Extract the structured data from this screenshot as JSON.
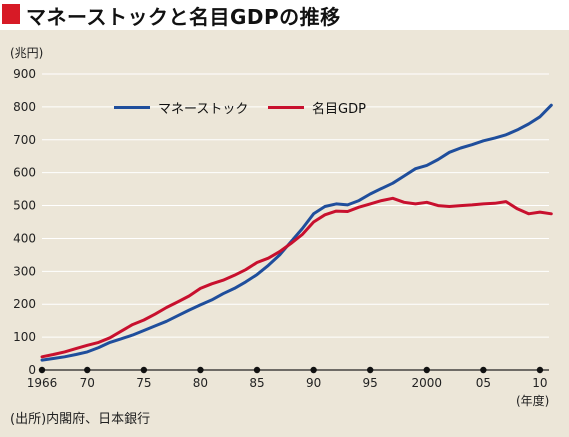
{
  "header": {
    "title": "マネーストックと名目GDPの推移"
  },
  "unit_label": "(兆円)",
  "x_unit_label": "(年度)",
  "source": "(出所)内閣府、日本銀行",
  "chart_data": {
    "type": "line",
    "title": "マネーストックと名目GDPの推移",
    "ylabel": "(兆円)",
    "xlabel": "(年度)",
    "ylim": [
      0,
      900
    ],
    "xlim": [
      1966,
      2011
    ],
    "y_ticks": [
      0,
      100,
      200,
      300,
      400,
      500,
      600,
      700,
      800,
      900
    ],
    "x_ticks": [
      {
        "year": 1966,
        "label": "1966"
      },
      {
        "year": 1970,
        "label": "70"
      },
      {
        "year": 1975,
        "label": "75"
      },
      {
        "year": 1980,
        "label": "80"
      },
      {
        "year": 1985,
        "label": "85"
      },
      {
        "year": 1990,
        "label": "90"
      },
      {
        "year": 1995,
        "label": "95"
      },
      {
        "year": 2000,
        "label": "2000"
      },
      {
        "year": 2005,
        "label": "05"
      },
      {
        "year": 2010,
        "label": "10"
      }
    ],
    "grid": true,
    "legend_position": "top-left",
    "x": [
      1966,
      1967,
      1968,
      1969,
      1970,
      1971,
      1972,
      1973,
      1974,
      1975,
      1976,
      1977,
      1978,
      1979,
      1980,
      1981,
      1982,
      1983,
      1984,
      1985,
      1986,
      1987,
      1988,
      1989,
      1990,
      1991,
      1992,
      1993,
      1994,
      1995,
      1996,
      1997,
      1998,
      1999,
      2000,
      2001,
      2002,
      2003,
      2004,
      2005,
      2006,
      2007,
      2008,
      2009,
      2010,
      2011
    ],
    "series": [
      {
        "name": "マネーストック",
        "color": "#1f4e9c",
        "values": [
          30,
          35,
          40,
          47,
          55,
          68,
          84,
          95,
          106,
          120,
          134,
          148,
          165,
          182,
          198,
          213,
          232,
          248,
          268,
          290,
          318,
          350,
          390,
          430,
          475,
          497,
          505,
          502,
          515,
          535,
          552,
          568,
          590,
          612,
          622,
          640,
          662,
          675,
          685,
          697,
          705,
          715,
          730,
          748,
          770,
          805
        ]
      },
      {
        "name": "名目GDP",
        "color": "#c8102e",
        "values": [
          40,
          47,
          55,
          65,
          75,
          84,
          98,
          118,
          138,
          152,
          170,
          190,
          207,
          225,
          248,
          262,
          273,
          288,
          305,
          327,
          340,
          360,
          385,
          412,
          450,
          472,
          483,
          482,
          495,
          505,
          515,
          522,
          510,
          505,
          510,
          500,
          497,
          500,
          502,
          505,
          507,
          512,
          490,
          475,
          480,
          475
        ]
      }
    ]
  }
}
